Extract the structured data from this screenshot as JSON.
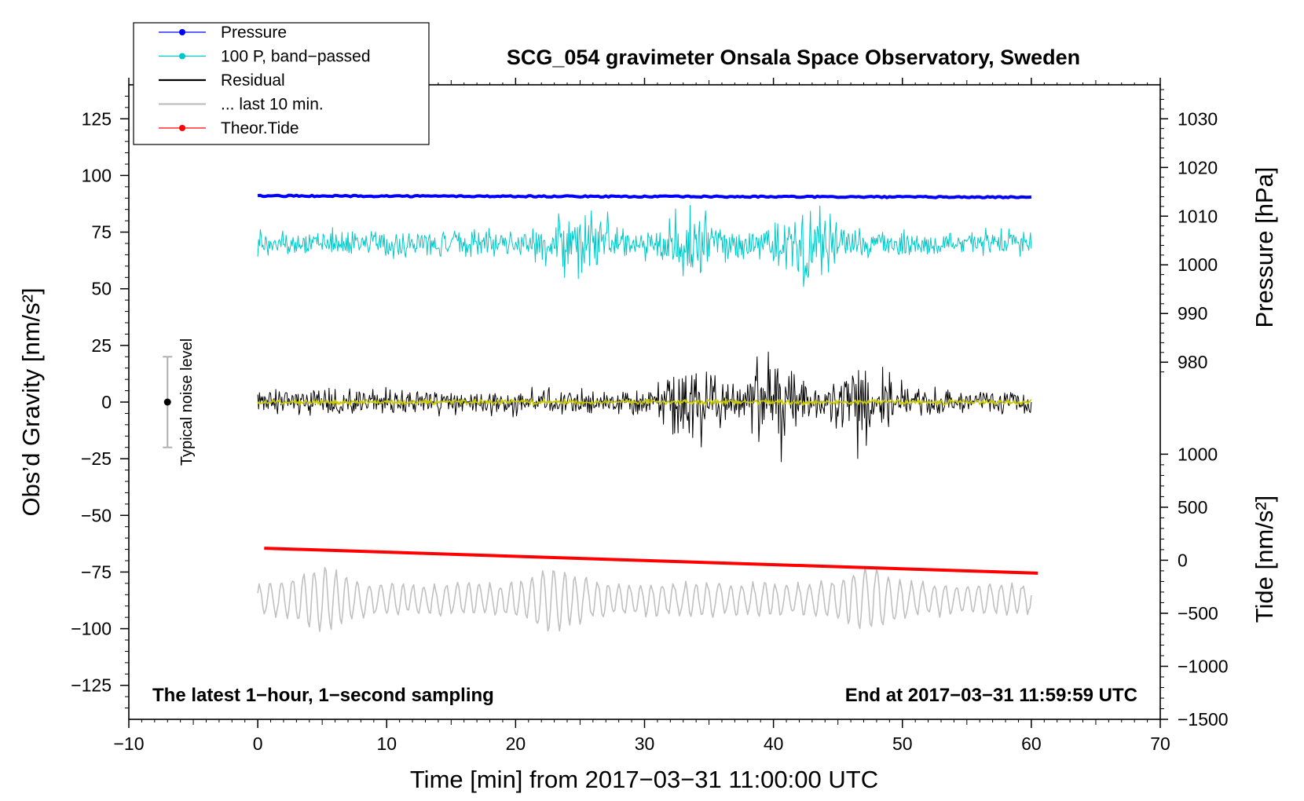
{
  "chart_data": {
    "type": "line",
    "title": "SCG_054 gravimeter Onsala Space Observatory, Sweden",
    "xlabel": "Time [min] from 2017−03−31 11:00:00 UTC",
    "ylabel_left": "Obs’d Gravity [nm/s²]",
    "ylabel_right_top": "Pressure [hPa]",
    "ylabel_right_bottom": "Tide [nm/s²]",
    "xlim": [
      -10,
      70
    ],
    "ylim_left": [
      -140,
      140
    ],
    "x_ticks": [
      -10,
      0,
      10,
      20,
      30,
      40,
      50,
      60,
      70
    ],
    "x_tick_labels": [
      "−10",
      "0",
      "10",
      "20",
      "30",
      "40",
      "50",
      "60",
      "70"
    ],
    "y_left_ticks": [
      125,
      100,
      75,
      50,
      25,
      0,
      -25,
      -50,
      -75,
      -100,
      -125
    ],
    "y_left_tick_labels": [
      "125",
      "100",
      "75",
      "50",
      "25",
      "0",
      "−25",
      "−50",
      "−75",
      "−100",
      "−125"
    ],
    "pressure_axis": {
      "ticks": [
        1030,
        1020,
        1010,
        1000,
        990,
        980
      ],
      "tick_labels": [
        "1030",
        "1020",
        "1010",
        "1000",
        "990",
        "980"
      ],
      "maps_to_left": {
        "value_a": 1030,
        "left_a": 125,
        "value_b": 980,
        "left_b": 17.6
      }
    },
    "tide_axis": {
      "ticks": [
        1000,
        500,
        0,
        -500,
        -1000,
        -1500
      ],
      "tick_labels": [
        "1000",
        "500",
        "0",
        "−500",
        "−1000",
        "−1500"
      ],
      "maps_to_left": {
        "value_a": 1000,
        "left_a": -23,
        "value_b": -1500,
        "left_b": -140
      }
    },
    "corner_left": "The latest 1−hour, 1−second sampling",
    "corner_right": "End at 2017−03−31 11:59:59 UTC",
    "noise_bar": {
      "x": -7,
      "center": 0,
      "low": -20,
      "high": 20,
      "label": "Typical noise level"
    },
    "legend": [
      {
        "label": "Pressure",
        "color": "#0000ff",
        "marker": true
      },
      {
        "label": "100 P, band−passed",
        "color": "#00c8c8",
        "marker": true
      },
      {
        "label": "Residual",
        "color": "#000000",
        "marker": false
      },
      {
        "label": "... last 10 min.",
        "color": "#c0c0c0",
        "marker": false
      },
      {
        "label": "Theor.Tide",
        "color": "#ff0000",
        "marker": true
      }
    ],
    "series": [
      {
        "name": "Pressure",
        "color": "#0000ff",
        "style": "smooth",
        "x_range": [
          0,
          60
        ],
        "level_start": 91,
        "level_end": 90.4,
        "noise_amp": 0.3
      },
      {
        "name": "100 P, band-passed",
        "color": "#00c8c8",
        "style": "noise",
        "x_range": [
          0,
          60
        ],
        "center": 70,
        "base_amp": 6,
        "burst_amp": 12,
        "bursts": [
          25,
          33.5,
          42.5
        ]
      },
      {
        "name": "Residual",
        "color": "#000000",
        "style": "noise",
        "x_range": [
          0,
          60
        ],
        "center": 0,
        "base_amp": 6,
        "burst_amp": 14,
        "bursts": [
          34,
          40,
          47
        ]
      },
      {
        "name": "Residual smoothed",
        "color": "#c8c800",
        "style": "noise",
        "x_range": [
          0,
          60
        ],
        "center": 0,
        "base_amp": 1.2,
        "burst_amp": 0,
        "bursts": []
      },
      {
        "name": "... last 10 min.",
        "color": "#c0c0c0",
        "style": "wave",
        "x_range": [
          0,
          60
        ],
        "center": -87,
        "base_amp": 5,
        "burst_amp": 7,
        "bursts": [
          5,
          23,
          47.5
        ]
      },
      {
        "name": "Theor.Tide",
        "color": "#ff0000",
        "style": "trend",
        "x_range": [
          0.5,
          60.5
        ],
        "start": -64.5,
        "end": -75.5
      }
    ]
  }
}
